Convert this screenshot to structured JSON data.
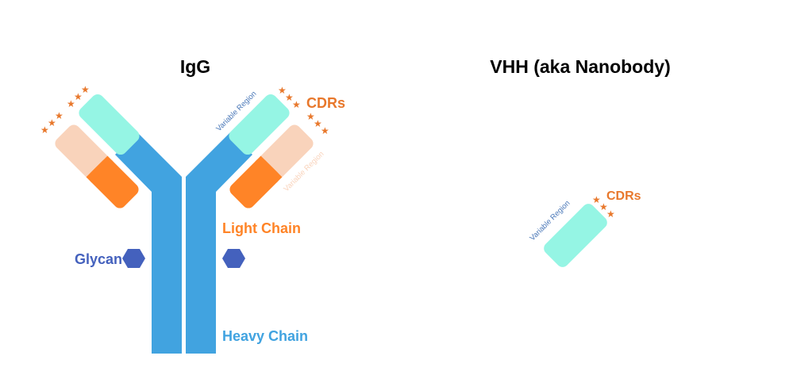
{
  "colors": {
    "heavy_chain": "#41a3e0",
    "light_chain_constant": "#ff8427",
    "light_chain_variable": "#f9d3bb",
    "heavy_variable": "#95f5e4",
    "glycan": "#4461bd",
    "cdr_star": "#e8782c",
    "divider_top": "#c0504d",
    "divider_bottom": "#5e9e3b",
    "variable_region_label": "#4a78b8",
    "title": "#000000"
  },
  "igg": {
    "title": "IgG",
    "cdrs_label": "CDRs",
    "light_chain_label": "Light Chain",
    "heavy_chain_label": "Heavy Chain",
    "glycan_label": "Glycan",
    "variable_region_heavy_label": "Variable Region",
    "variable_region_light_label": "Variable Region",
    "glycan_icon": "hexagon-icon",
    "cdr_icon": "star-icon"
  },
  "vhh": {
    "title": "VHH (aka Nanobody)",
    "cdrs_label": "CDRs",
    "variable_region_label": "Variable Region",
    "cdr_icon": "star-icon"
  }
}
